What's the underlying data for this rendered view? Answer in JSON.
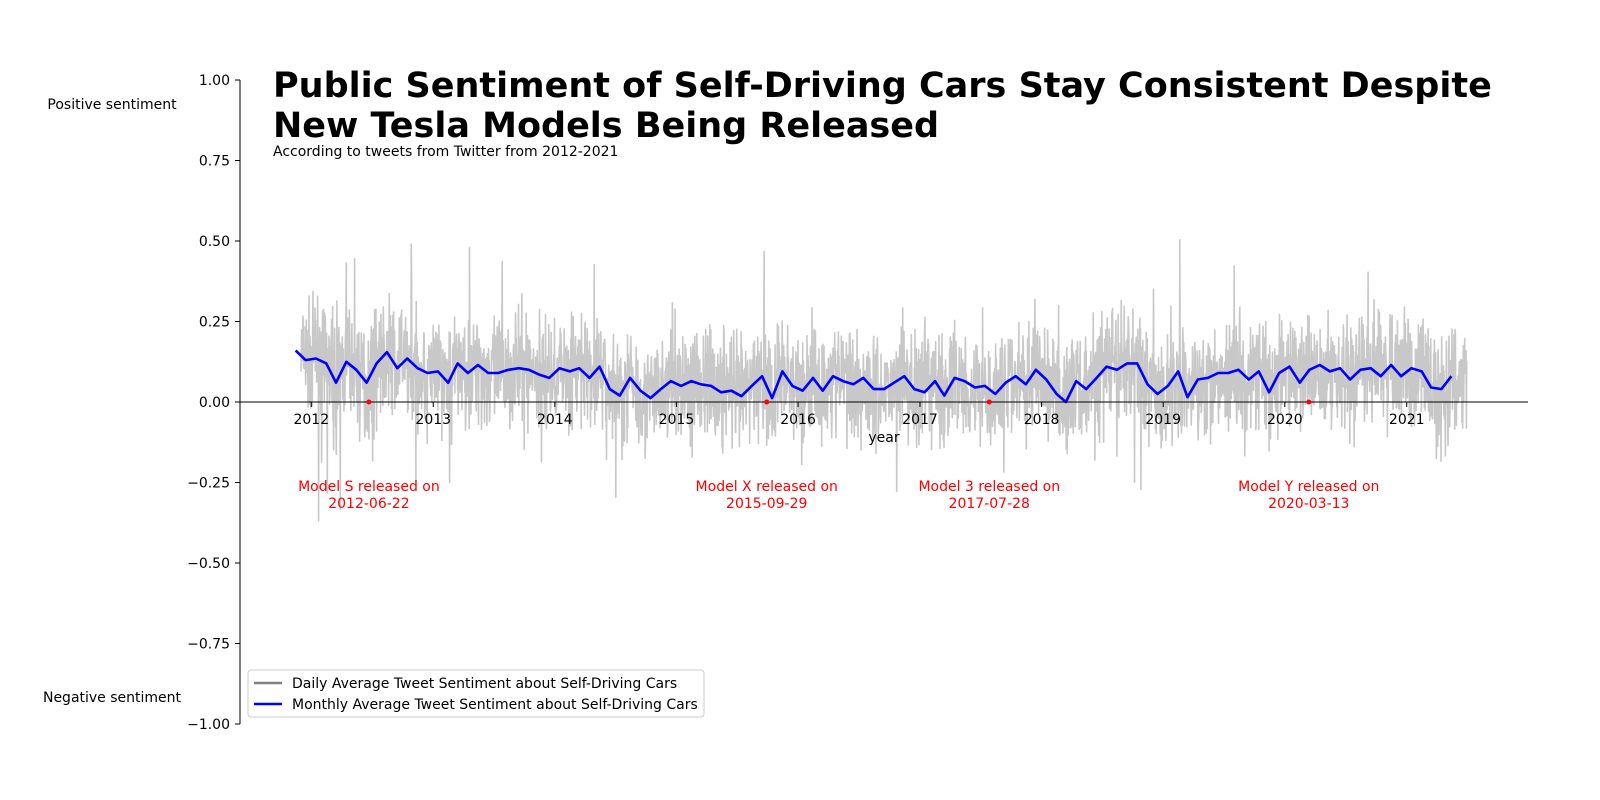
{
  "chart_data": {
    "type": "line",
    "title_line1": "Public Sentiment of Self-Driving Cars Stay Consistent Despite",
    "title_line2": "New Tesla Models Being Released",
    "subtitle": "According to tweets from Twitter from 2012-2021",
    "xlabel": "year",
    "ylabel_top": "Positive sentiment",
    "ylabel_bottom": "Negative sentiment",
    "xlim": [
      "2011-06-01",
      "2021-12-31"
    ],
    "ylim": [
      -1.0,
      1.0
    ],
    "x_ticks": [
      "2012",
      "2013",
      "2014",
      "2015",
      "2016",
      "2017",
      "2018",
      "2019",
      "2020",
      "2021"
    ],
    "y_ticks": [
      "1.00",
      "0.75",
      "0.50",
      "0.25",
      "0.00",
      "−0.25",
      "−0.50",
      "−0.75",
      "−1.00"
    ],
    "grid": false,
    "legend_position": "lower-left",
    "series": [
      {
        "name": "Daily Average Tweet Sentiment about Self-Driving Cars",
        "color": "#c8c8c8",
        "legend_color": "#808080",
        "date_range": [
          "2011-12-01",
          "2021-06-30"
        ],
        "approx_range": [
          -0.46,
          0.54
        ]
      },
      {
        "name": "Monthly Average Tweet Sentiment about Self-Driving Cars",
        "color": "#0000ff",
        "start": "2011-11",
        "values": [
          0.16,
          0.13,
          0.135,
          0.12,
          0.06,
          0.125,
          0.1,
          0.06,
          0.12,
          0.155,
          0.105,
          0.135,
          0.105,
          0.09,
          0.095,
          0.06,
          0.12,
          0.09,
          0.115,
          0.09,
          0.09,
          0.1,
          0.105,
          0.1,
          0.085,
          0.075,
          0.105,
          0.095,
          0.105,
          0.075,
          0.11,
          0.04,
          0.02,
          0.075,
          0.035,
          0.012,
          0.04,
          0.065,
          0.05,
          0.065,
          0.055,
          0.05,
          0.03,
          0.035,
          0.018,
          0.05,
          0.08,
          0.012,
          0.095,
          0.05,
          0.035,
          0.075,
          0.035,
          0.08,
          0.065,
          0.055,
          0.075,
          0.04,
          0.04,
          0.06,
          0.08,
          0.04,
          0.03,
          0.065,
          0.02,
          0.075,
          0.065,
          0.045,
          0.05,
          0.025,
          0.06,
          0.08,
          0.055,
          0.1,
          0.07,
          0.025,
          0.0,
          0.065,
          0.04,
          0.075,
          0.11,
          0.1,
          0.12,
          0.12,
          0.055,
          0.025,
          0.05,
          0.095,
          0.015,
          0.07,
          0.075,
          0.09,
          0.09,
          0.1,
          0.07,
          0.095,
          0.03,
          0.09,
          0.11,
          0.06,
          0.1,
          0.115,
          0.095,
          0.105,
          0.07,
          0.1,
          0.105,
          0.08,
          0.115,
          0.08,
          0.105,
          0.095,
          0.045,
          0.04,
          0.08
        ]
      }
    ],
    "annotations": [
      {
        "date": "2012-06-22",
        "label_line1": "Model S released on",
        "label_line2": "2012-06-22"
      },
      {
        "date": "2015-09-29",
        "label_line1": "Model X released on",
        "label_line2": "2015-09-29"
      },
      {
        "date": "2017-07-28",
        "label_line1": "Model 3 released on",
        "label_line2": "2017-07-28"
      },
      {
        "date": "2020-03-13",
        "label_line1": "Model Y released on",
        "label_line2": "2020-03-13"
      }
    ],
    "colors": {
      "annotation": "#ff0000",
      "axis": "#000000"
    }
  }
}
